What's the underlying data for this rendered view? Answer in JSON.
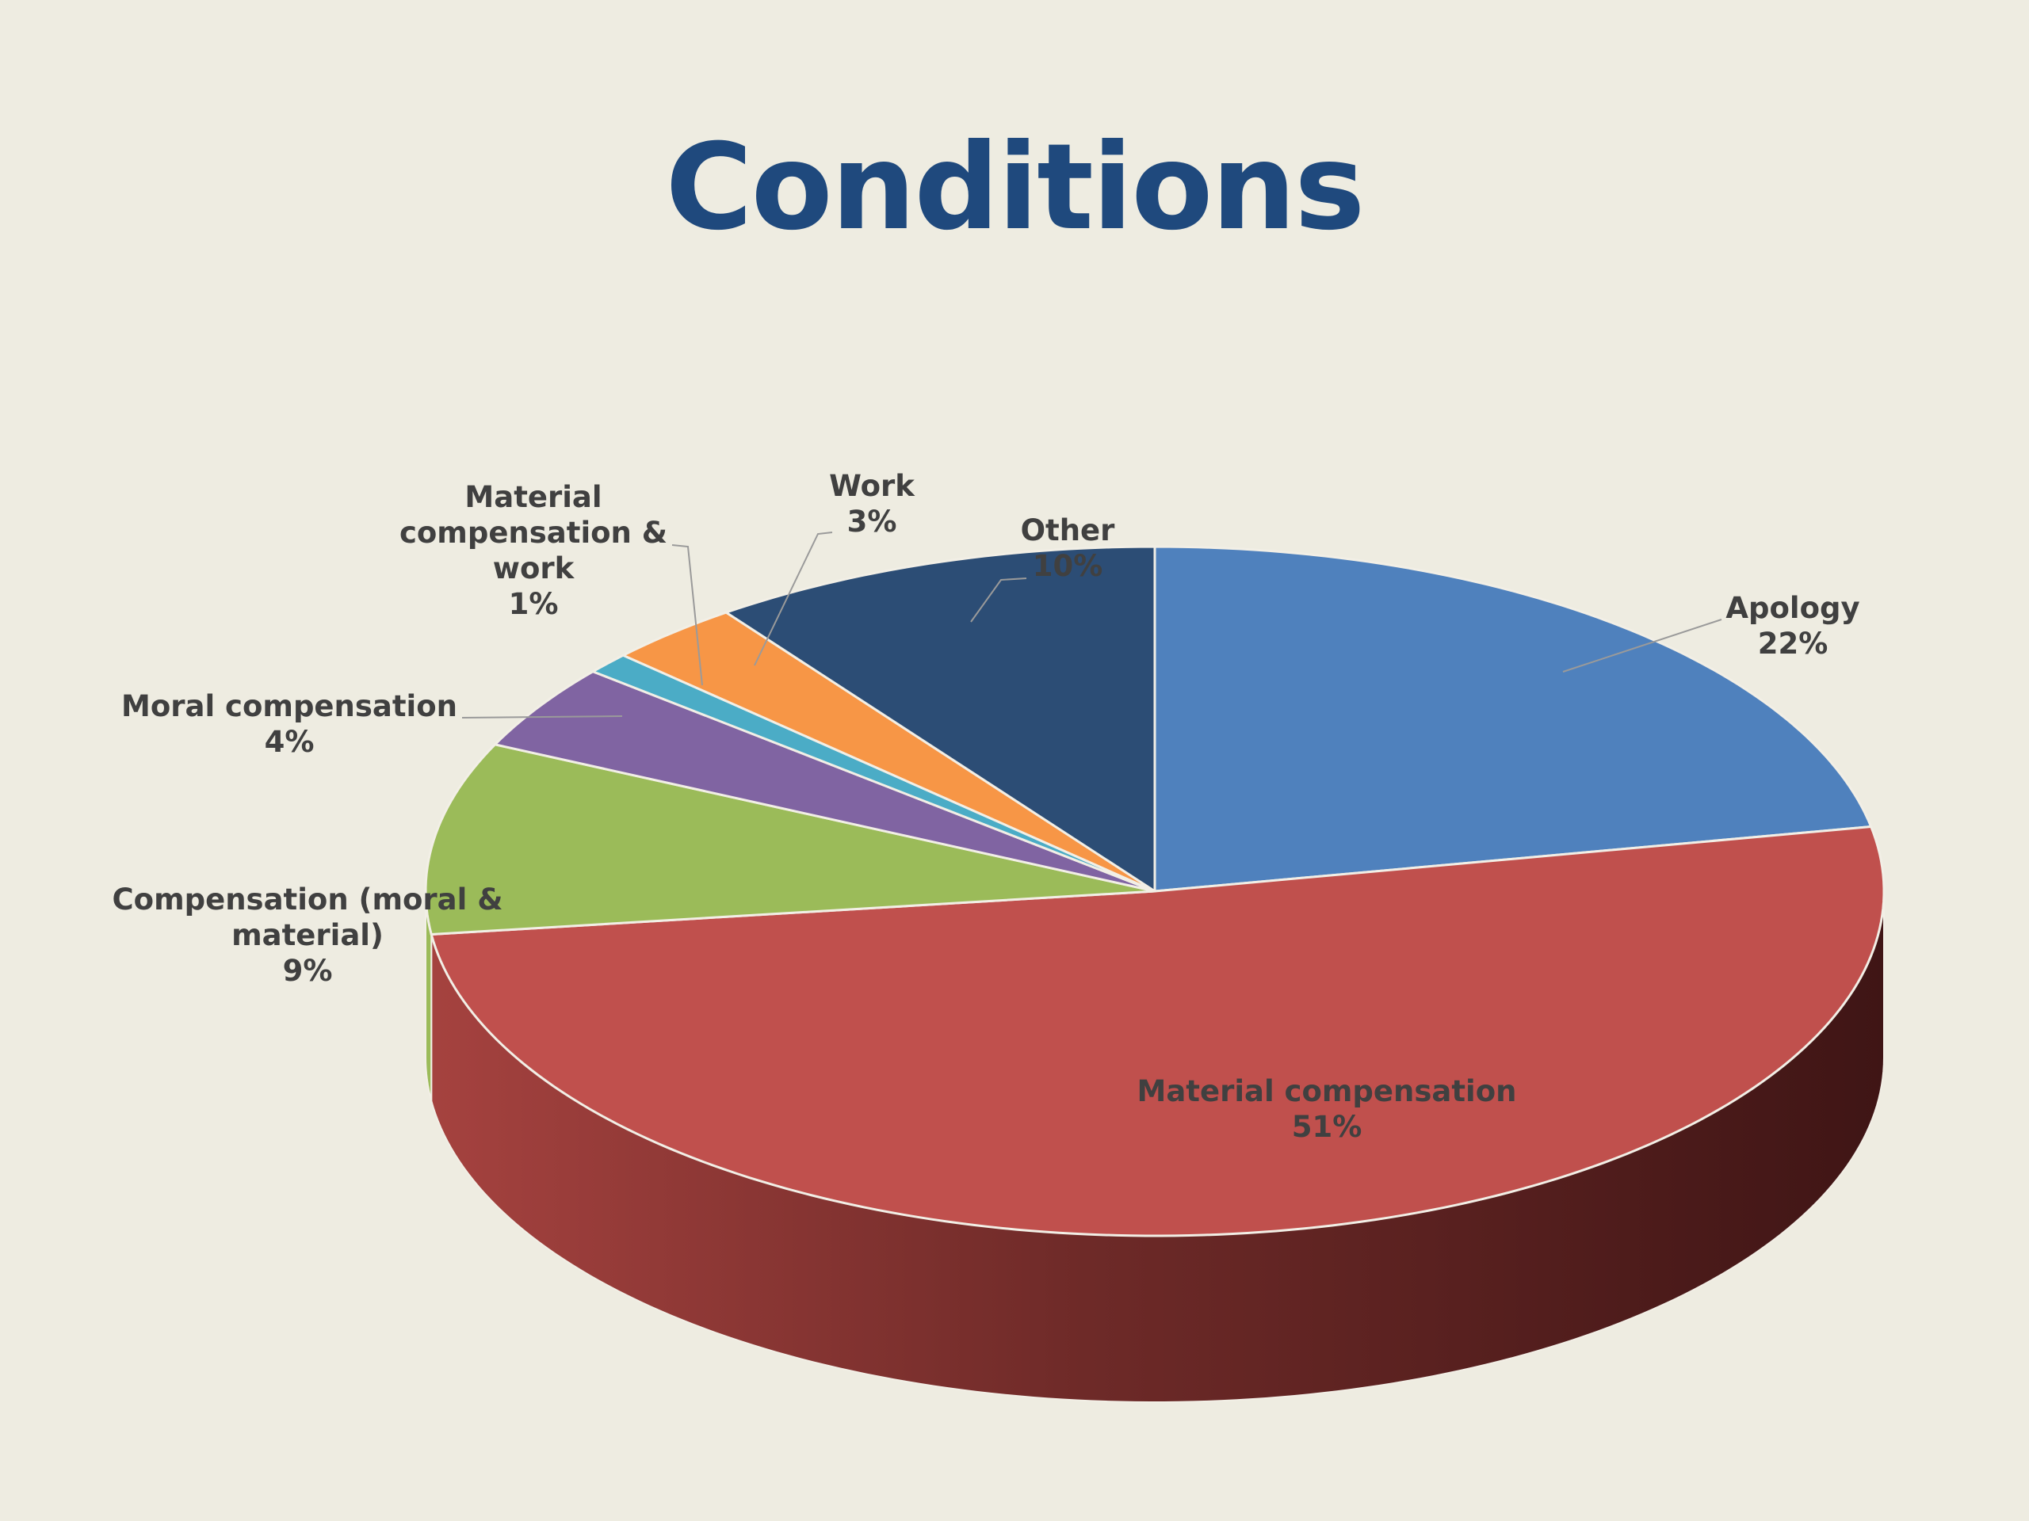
{
  "title": "Conditions",
  "chart_data": {
    "type": "pie",
    "three_d": true,
    "title": "Conditions",
    "start": "12 o'clock, clockwise",
    "slices": [
      {
        "name": "Apology",
        "value": 22,
        "label": "22%",
        "color": "#4f81bd"
      },
      {
        "name": "Material compensation",
        "value": 51,
        "label": "51%",
        "color": "#c0504d",
        "side_color": "#8c3330"
      },
      {
        "name": "Compensation (moral & material)",
        "value": 9,
        "label": "9%",
        "color": "#9bbb59"
      },
      {
        "name": "Moral compensation",
        "value": 4,
        "label": "4%",
        "color": "#8064a2"
      },
      {
        "name": "Material compensation & work",
        "value": 1,
        "label": "1%",
        "color": "#4bacc6"
      },
      {
        "name": "Work",
        "value": 3,
        "label": "3%",
        "color": "#f79646"
      },
      {
        "name": "Other",
        "value": 10,
        "label": "10%",
        "color": "#2c4d75"
      }
    ],
    "label_lines": {
      "Apology": [
        "Apology",
        "22%"
      ],
      "Material compensation": [
        "Material compensation",
        "51%"
      ],
      "Compensation (moral & material)": [
        "Compensation (moral &",
        "material)",
        "9%"
      ],
      "Moral compensation": [
        "Moral compensation",
        "4%"
      ],
      "Material compensation & work": [
        "Material",
        "compensation &",
        "work",
        "1%"
      ],
      "Work": [
        "Work",
        "3%"
      ],
      "Other": [
        "Other",
        "10%"
      ]
    }
  }
}
